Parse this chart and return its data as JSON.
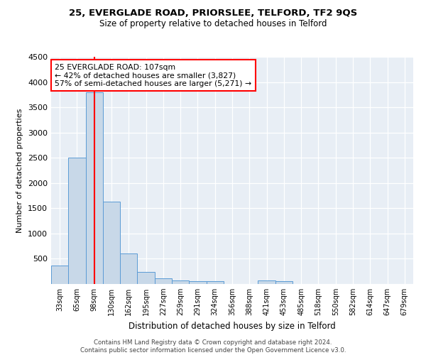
{
  "title1": "25, EVERGLADE ROAD, PRIORSLEE, TELFORD, TF2 9QS",
  "title2": "Size of property relative to detached houses in Telford",
  "xlabel": "Distribution of detached houses by size in Telford",
  "ylabel": "Number of detached properties",
  "bar_labels": [
    "33sqm",
    "65sqm",
    "98sqm",
    "130sqm",
    "162sqm",
    "195sqm",
    "227sqm",
    "259sqm",
    "291sqm",
    "324sqm",
    "356sqm",
    "388sqm",
    "421sqm",
    "453sqm",
    "485sqm",
    "518sqm",
    "550sqm",
    "582sqm",
    "614sqm",
    "647sqm",
    "679sqm"
  ],
  "bar_values": [
    370,
    2500,
    3800,
    1630,
    600,
    240,
    110,
    65,
    55,
    55,
    0,
    0,
    65,
    55,
    0,
    0,
    0,
    0,
    0,
    0,
    0
  ],
  "bar_color": "#c8d8e8",
  "bar_edge_color": "#5b9bd5",
  "vline_idx": 2,
  "vline_color": "red",
  "annotation_text": "25 EVERGLADE ROAD: 107sqm\n← 42% of detached houses are smaller (3,827)\n57% of semi-detached houses are larger (5,271) →",
  "annotation_box_color": "white",
  "annotation_box_edge": "red",
  "ylim": [
    0,
    4500
  ],
  "yticks": [
    0,
    500,
    1000,
    1500,
    2000,
    2500,
    3000,
    3500,
    4000,
    4500
  ],
  "footer": "Contains HM Land Registry data © Crown copyright and database right 2024.\nContains public sector information licensed under the Open Government Licence v3.0.",
  "plot_bg": "#e8eef5",
  "title1_fontsize": 9.5,
  "title2_fontsize": 8.5
}
